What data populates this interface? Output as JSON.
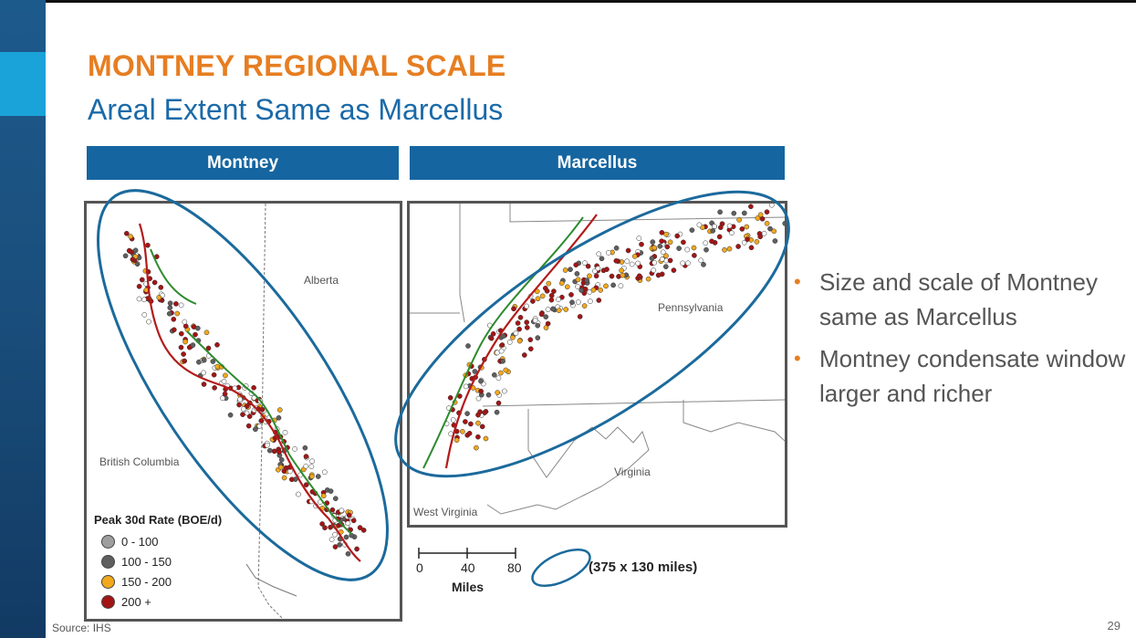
{
  "slide": {
    "title": "MONTNEY REGIONAL SCALE",
    "subtitle": "Areal Extent Same as Marcellus",
    "page_number": "29",
    "source": "Source: IHS"
  },
  "panels": {
    "montney": {
      "banner": "Montney",
      "labels": {
        "alberta": "Alberta",
        "british_columbia": "British Columbia"
      }
    },
    "marcellus": {
      "banner": "Marcellus",
      "labels": {
        "pennsylvania": "Pennsylvania",
        "virginia": "Virginia",
        "west_virginia": "West Virginia"
      }
    }
  },
  "legend": {
    "title": "Peak 30d Rate (BOE/d)",
    "items": [
      {
        "label": "0 - 100",
        "color": "#9e9e9e"
      },
      {
        "label": "100 - 150",
        "color": "#5f5f5f"
      },
      {
        "label": "150 - 200",
        "color": "#f2a81d"
      },
      {
        "label": "200 +",
        "color": "#a31515"
      }
    ]
  },
  "scale_bar": {
    "ticks": [
      "0",
      "40",
      "80"
    ],
    "unit": "Miles",
    "ellipse_dimensions": "(375 x 130 miles)"
  },
  "bullets": [
    "Size and scale of Montney same as Marcellus",
    "Montney condensate window larger and richer"
  ],
  "colors": {
    "accent_orange": "#e67e22",
    "title_blue": "#1a6aa8",
    "banner_blue": "#1565a0",
    "ellipse_blue": "#1b6a9c"
  }
}
